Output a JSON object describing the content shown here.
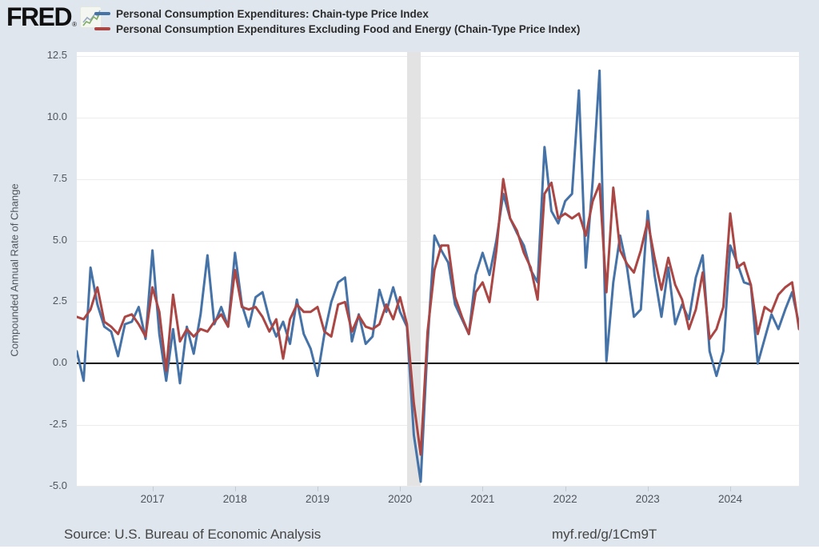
{
  "header": {
    "logo_text": "FRED",
    "logo_registered": "®",
    "legend": [
      {
        "label": "Personal Consumption Expenditures: Chain-type Price Index",
        "color": "#4572a7"
      },
      {
        "label": "Personal Consumption Expenditures Excluding Food and Energy (Chain-Type Price Index)",
        "color": "#aa4643"
      }
    ]
  },
  "chart_data": {
    "type": "line",
    "ylabel": "Compounded Annual Rate of Change",
    "ylim": [
      -5,
      12.5
    ],
    "yticks": [
      12.5,
      10.0,
      7.5,
      5.0,
      2.5,
      0.0,
      -2.5,
      -5.0
    ],
    "ytick_labels": [
      "12.5",
      "10.0",
      "7.5",
      "5.0",
      "2.5",
      "0.0",
      "-2.5",
      "-5.0"
    ],
    "grid": true,
    "frequency": "monthly",
    "x_range": "2016-02 to 2024-11",
    "year_labels": [
      "2017",
      "2018",
      "2019",
      "2020",
      "2021",
      "2022",
      "2023",
      "2024"
    ],
    "start_year": 2016,
    "recession_band": {
      "start_index": 48,
      "end_index": 50
    },
    "zero_line_color": "#000000",
    "series": [
      {
        "name": "Personal Consumption Expenditures: Chain-type Price Index",
        "color": "#4572a7",
        "values": [
          0.5,
          -0.7,
          3.9,
          2.4,
          1.5,
          1.3,
          0.3,
          1.6,
          1.7,
          2.3,
          1.0,
          4.6,
          1.2,
          -0.7,
          1.4,
          -0.8,
          1.5,
          0.4,
          2.0,
          4.4,
          1.6,
          2.3,
          1.5,
          4.5,
          2.4,
          1.5,
          2.7,
          2.9,
          1.8,
          1.1,
          1.7,
          0.8,
          2.6,
          1.2,
          0.6,
          -0.5,
          1.2,
          2.5,
          3.3,
          3.5,
          0.9,
          2.0,
          0.8,
          1.1,
          3.0,
          2.1,
          3.1,
          2.1,
          1.5,
          -2.9,
          -4.8,
          0.8,
          5.2,
          4.6,
          4.1,
          2.4,
          1.8,
          1.2,
          3.6,
          4.5,
          3.6,
          5.0,
          6.9,
          5.9,
          5.3,
          4.8,
          3.8,
          3.3,
          8.8,
          6.2,
          5.7,
          6.6,
          6.9,
          11.1,
          3.9,
          7.4,
          11.9,
          0.1,
          3.3,
          5.2,
          3.9,
          1.9,
          2.2,
          6.2,
          3.6,
          1.9,
          3.9,
          1.6,
          2.4,
          1.8,
          3.5,
          4.4,
          0.5,
          -0.5,
          0.5,
          4.8,
          4.1,
          3.3,
          3.2,
          0.0,
          1.0,
          2.0,
          1.4,
          2.2,
          2.9,
          1.6
        ]
      },
      {
        "name": "Personal Consumption Expenditures Excluding Food and Energy (Chain-Type Price Index)",
        "color": "#aa4643",
        "values": [
          1.9,
          1.8,
          2.2,
          3.1,
          1.7,
          1.5,
          1.2,
          1.9,
          2.0,
          1.6,
          1.1,
          3.1,
          2.1,
          -0.3,
          2.8,
          0.9,
          1.4,
          1.1,
          1.4,
          1.3,
          1.7,
          2.0,
          1.5,
          3.8,
          2.3,
          2.2,
          2.3,
          1.9,
          1.3,
          1.8,
          0.2,
          1.8,
          2.4,
          2.1,
          2.1,
          2.3,
          1.3,
          1.1,
          2.4,
          2.5,
          1.3,
          1.95,
          1.5,
          1.4,
          1.6,
          2.4,
          1.8,
          2.7,
          1.6,
          -1.6,
          -3.7,
          1.3,
          3.8,
          4.8,
          4.8,
          2.7,
          1.9,
          1.2,
          2.9,
          3.3,
          2.5,
          4.6,
          7.5,
          5.9,
          5.4,
          4.5,
          3.9,
          2.6,
          6.9,
          7.35,
          5.9,
          6.1,
          5.9,
          6.1,
          5.2,
          6.6,
          7.3,
          2.9,
          7.15,
          4.6,
          4.05,
          3.7,
          4.6,
          5.8,
          4.3,
          3.0,
          4.3,
          3.2,
          2.6,
          1.4,
          2.2,
          3.7,
          1.0,
          1.4,
          2.3,
          6.1,
          3.9,
          4.1,
          3.2,
          1.2,
          2.3,
          2.1,
          2.8,
          3.1,
          3.3,
          1.4
        ]
      }
    ]
  },
  "footer": {
    "source": "Source: U.S. Bureau of Economic Analysis",
    "link": "myf.red/g/1Cm9T"
  }
}
